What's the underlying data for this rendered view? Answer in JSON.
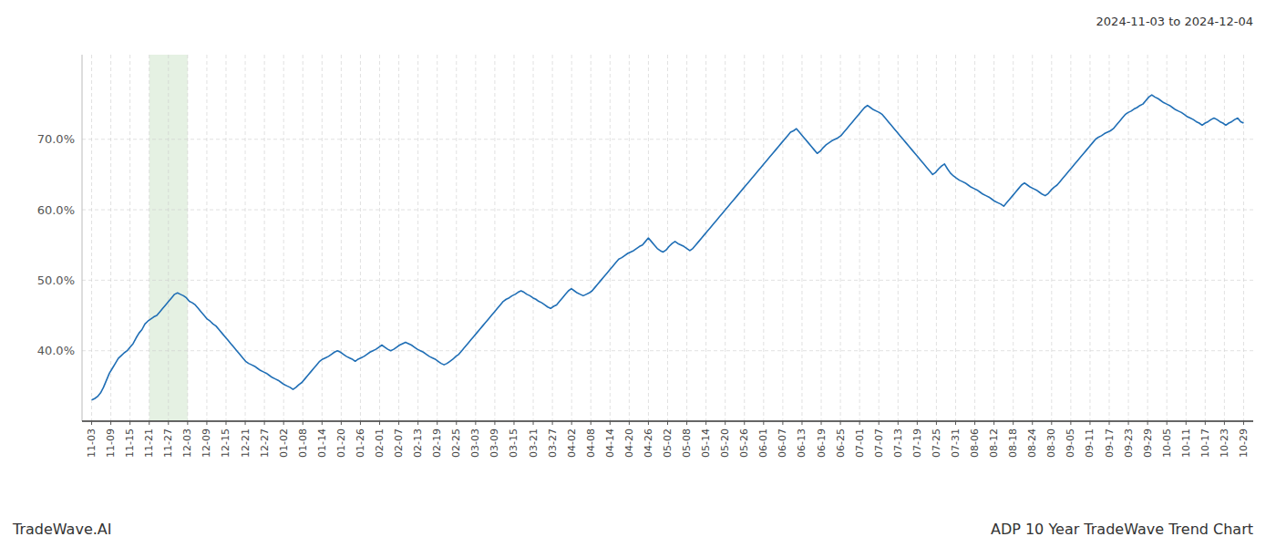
{
  "chart_data": {
    "type": "line",
    "title": "ADP 10 Year TradeWave Trend Chart",
    "subtitle": "2024-11-03 to 2024-12-04",
    "annotations": [
      "TradeWave.AI"
    ],
    "color": "#1f6eb5",
    "grid": true,
    "highlight": {
      "start": "11-21",
      "end": "12-03",
      "color": "#d4e8d0"
    },
    "xlim": [
      -0.5,
      60.5
    ],
    "xticks": [
      {
        "value": 0,
        "label": "11-03"
      },
      {
        "value": 1,
        "label": "11-09"
      },
      {
        "value": 2,
        "label": "11-15"
      },
      {
        "value": 3,
        "label": "11-21"
      },
      {
        "value": 4,
        "label": "11-27"
      },
      {
        "value": 5,
        "label": "12-03"
      },
      {
        "value": 6,
        "label": "12-09"
      },
      {
        "value": 7,
        "label": "12-15"
      },
      {
        "value": 8,
        "label": "12-21"
      },
      {
        "value": 9,
        "label": "12-27"
      },
      {
        "value": 10,
        "label": "01-02"
      },
      {
        "value": 11,
        "label": "01-08"
      },
      {
        "value": 12,
        "label": "01-14"
      },
      {
        "value": 13,
        "label": "01-20"
      },
      {
        "value": 14,
        "label": "01-26"
      },
      {
        "value": 15,
        "label": "02-01"
      },
      {
        "value": 16,
        "label": "02-07"
      },
      {
        "value": 17,
        "label": "02-13"
      },
      {
        "value": 18,
        "label": "02-19"
      },
      {
        "value": 19,
        "label": "02-25"
      },
      {
        "value": 20,
        "label": "03-03"
      },
      {
        "value": 21,
        "label": "03-09"
      },
      {
        "value": 22,
        "label": "03-15"
      },
      {
        "value": 23,
        "label": "03-21"
      },
      {
        "value": 24,
        "label": "03-27"
      },
      {
        "value": 25,
        "label": "04-02"
      },
      {
        "value": 26,
        "label": "04-08"
      },
      {
        "value": 27,
        "label": "04-14"
      },
      {
        "value": 28,
        "label": "04-20"
      },
      {
        "value": 29,
        "label": "04-26"
      },
      {
        "value": 30,
        "label": "05-02"
      },
      {
        "value": 31,
        "label": "05-08"
      },
      {
        "value": 32,
        "label": "05-14"
      },
      {
        "value": 33,
        "label": "05-20"
      },
      {
        "value": 34,
        "label": "05-26"
      },
      {
        "value": 35,
        "label": "06-01"
      },
      {
        "value": 36,
        "label": "06-07"
      },
      {
        "value": 37,
        "label": "06-13"
      },
      {
        "value": 38,
        "label": "06-19"
      },
      {
        "value": 39,
        "label": "06-25"
      },
      {
        "value": 40,
        "label": "07-01"
      },
      {
        "value": 41,
        "label": "07-07"
      },
      {
        "value": 42,
        "label": "07-13"
      },
      {
        "value": 43,
        "label": "07-19"
      },
      {
        "value": 44,
        "label": "07-25"
      },
      {
        "value": 45,
        "label": "07-31"
      },
      {
        "value": 46,
        "label": "08-06"
      },
      {
        "value": 47,
        "label": "08-12"
      },
      {
        "value": 48,
        "label": "08-18"
      },
      {
        "value": 49,
        "label": "08-24"
      },
      {
        "value": 50,
        "label": "08-30"
      },
      {
        "value": 51,
        "label": "09-05"
      },
      {
        "value": 52,
        "label": "09-11"
      },
      {
        "value": 53,
        "label": "09-17"
      },
      {
        "value": 54,
        "label": "09-23"
      },
      {
        "value": 55,
        "label": "09-29"
      },
      {
        "value": 56,
        "label": "10-05"
      },
      {
        "value": 57,
        "label": "10-11"
      },
      {
        "value": 58,
        "label": "10-17"
      },
      {
        "value": 59,
        "label": "10-23"
      },
      {
        "value": 60,
        "label": "10-29"
      }
    ],
    "ylim": [
      30,
      82
    ],
    "yticks": [
      {
        "value": 40.0,
        "label": "40.0%"
      },
      {
        "value": 50.0,
        "label": "50.0%"
      },
      {
        "value": 60.0,
        "label": "60.0%"
      },
      {
        "value": 70.0,
        "label": "70.0%"
      }
    ],
    "values": [
      33.0,
      33.2,
      33.5,
      34.0,
      34.8,
      35.8,
      36.8,
      37.5,
      38.2,
      38.9,
      39.3,
      39.7,
      40.0,
      40.5,
      41.0,
      41.8,
      42.5,
      43.0,
      43.8,
      44.2,
      44.5,
      44.8,
      45.0,
      45.5,
      46.0,
      46.5,
      47.0,
      47.5,
      48.0,
      48.2,
      48.0,
      47.8,
      47.5,
      47.0,
      46.8,
      46.5,
      46.0,
      45.5,
      45.0,
      44.5,
      44.2,
      43.8,
      43.5,
      43.0,
      42.5,
      42.0,
      41.5,
      41.0,
      40.5,
      40.0,
      39.5,
      39.0,
      38.5,
      38.2,
      38.0,
      37.8,
      37.5,
      37.2,
      37.0,
      36.8,
      36.5,
      36.2,
      36.0,
      35.8,
      35.5,
      35.2,
      35.0,
      34.8,
      34.5,
      34.8,
      35.2,
      35.5,
      36.0,
      36.5,
      37.0,
      37.5,
      38.0,
      38.5,
      38.8,
      39.0,
      39.2,
      39.5,
      39.8,
      40.0,
      39.8,
      39.5,
      39.2,
      39.0,
      38.8,
      38.5,
      38.8,
      39.0,
      39.2,
      39.5,
      39.8,
      40.0,
      40.2,
      40.5,
      40.8,
      40.5,
      40.2,
      40.0,
      40.2,
      40.5,
      40.8,
      41.0,
      41.2,
      41.0,
      40.8,
      40.5,
      40.2,
      40.0,
      39.8,
      39.5,
      39.2,
      39.0,
      38.8,
      38.5,
      38.2,
      38.0,
      38.2,
      38.5,
      38.8,
      39.2,
      39.5,
      40.0,
      40.5,
      41.0,
      41.5,
      42.0,
      42.5,
      43.0,
      43.5,
      44.0,
      44.5,
      45.0,
      45.5,
      46.0,
      46.5,
      47.0,
      47.3,
      47.5,
      47.8,
      48.0,
      48.3,
      48.5,
      48.3,
      48.0,
      47.8,
      47.5,
      47.3,
      47.0,
      46.8,
      46.5,
      46.2,
      46.0,
      46.3,
      46.5,
      47.0,
      47.5,
      48.0,
      48.5,
      48.8,
      48.5,
      48.2,
      48.0,
      47.8,
      48.0,
      48.2,
      48.5,
      49.0,
      49.5,
      50.0,
      50.5,
      51.0,
      51.5,
      52.0,
      52.5,
      53.0,
      53.2,
      53.5,
      53.8,
      54.0,
      54.2,
      54.5,
      54.8,
      55.0,
      55.5,
      56.0,
      55.5,
      55.0,
      54.5,
      54.2,
      54.0,
      54.3,
      54.8,
      55.2,
      55.5,
      55.2,
      55.0,
      54.8,
      54.5,
      54.2,
      54.5,
      55.0,
      55.5,
      56.0,
      56.5,
      57.0,
      57.5,
      58.0,
      58.5,
      59.0,
      59.5,
      60.0,
      60.5,
      61.0,
      61.5,
      62.0,
      62.5,
      63.0,
      63.5,
      64.0,
      64.5,
      65.0,
      65.5,
      66.0,
      66.5,
      67.0,
      67.5,
      68.0,
      68.5,
      69.0,
      69.5,
      70.0,
      70.5,
      71.0,
      71.2,
      71.5,
      71.0,
      70.5,
      70.0,
      69.5,
      69.0,
      68.5,
      68.0,
      68.3,
      68.8,
      69.2,
      69.5,
      69.8,
      70.0,
      70.2,
      70.5,
      71.0,
      71.5,
      72.0,
      72.5,
      73.0,
      73.5,
      74.0,
      74.5,
      74.8,
      74.5,
      74.2,
      74.0,
      73.8,
      73.5,
      73.0,
      72.5,
      72.0,
      71.5,
      71.0,
      70.5,
      70.0,
      69.5,
      69.0,
      68.5,
      68.0,
      67.5,
      67.0,
      66.5,
      66.0,
      65.5,
      65.0,
      65.3,
      65.8,
      66.2,
      66.5,
      65.8,
      65.2,
      64.8,
      64.5,
      64.2,
      64.0,
      63.8,
      63.5,
      63.2,
      63.0,
      62.8,
      62.5,
      62.2,
      62.0,
      61.8,
      61.5,
      61.2,
      61.0,
      60.8,
      60.5,
      61.0,
      61.5,
      62.0,
      62.5,
      63.0,
      63.5,
      63.8,
      63.5,
      63.2,
      63.0,
      62.8,
      62.5,
      62.2,
      62.0,
      62.3,
      62.8,
      63.2,
      63.5,
      64.0,
      64.5,
      65.0,
      65.5,
      66.0,
      66.5,
      67.0,
      67.5,
      68.0,
      68.5,
      69.0,
      69.5,
      70.0,
      70.3,
      70.5,
      70.8,
      71.0,
      71.2,
      71.5,
      72.0,
      72.5,
      73.0,
      73.5,
      73.8,
      74.0,
      74.3,
      74.5,
      74.8,
      75.0,
      75.5,
      76.0,
      76.3,
      76.0,
      75.8,
      75.5,
      75.2,
      75.0,
      74.8,
      74.5,
      74.2,
      74.0,
      73.8,
      73.5,
      73.2,
      73.0,
      72.8,
      72.5,
      72.3,
      72.0,
      72.3,
      72.5,
      72.8,
      73.0,
      72.8,
      72.5,
      72.3,
      72.0,
      72.3,
      72.5,
      72.8,
      73.0,
      72.5,
      72.3
    ]
  }
}
